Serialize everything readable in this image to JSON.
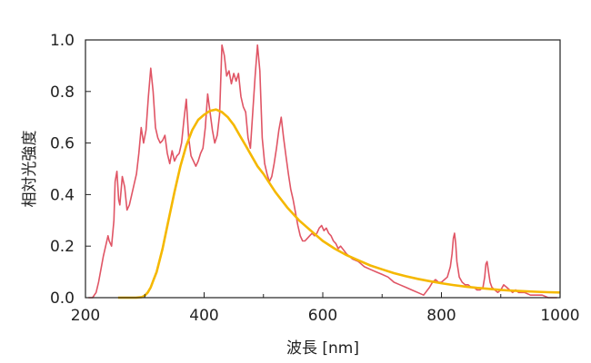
{
  "chart_data": {
    "type": "line",
    "title": "",
    "xlabel": "波長 [nm]",
    "ylabel": "相対光強度",
    "xlim": [
      200,
      1000
    ],
    "ylim": [
      0,
      1.0
    ],
    "xticks": [
      200,
      400,
      600,
      800,
      1000
    ],
    "xtick_labels": [
      "200",
      "400",
      "600",
      "800",
      "1000"
    ],
    "yticks": [
      0,
      0.2,
      0.4,
      0.6,
      0.8,
      1.0
    ],
    "ytick_labels": [
      "0.0",
      "0.2",
      "0.4",
      "0.6",
      "0.8",
      "1.0"
    ],
    "grid": false,
    "legend": "none",
    "series": [
      {
        "color": "#e05565",
        "x": [
          205,
          212,
          218,
          222,
          226,
          230,
          234,
          238,
          240,
          244,
          248,
          250,
          253,
          256,
          258,
          262,
          266,
          270,
          274,
          278,
          282,
          286,
          290,
          294,
          298,
          302,
          306,
          310,
          314,
          318,
          322,
          326,
          330,
          334,
          338,
          342,
          346,
          350,
          354,
          358,
          362,
          366,
          370,
          374,
          378,
          382,
          386,
          390,
          394,
          398,
          402,
          406,
          410,
          414,
          418,
          422,
          426,
          430,
          434,
          438,
          442,
          446,
          450,
          454,
          458,
          462,
          466,
          470,
          474,
          478,
          482,
          486,
          490,
          494,
          498,
          502,
          506,
          510,
          514,
          518,
          522,
          526,
          530,
          534,
          538,
          542,
          546,
          550,
          554,
          558,
          562,
          566,
          570,
          574,
          578,
          582,
          586,
          590,
          594,
          598,
          602,
          606,
          610,
          614,
          618,
          622,
          626,
          630,
          640,
          650,
          660,
          670,
          680,
          690,
          700,
          710,
          720,
          730,
          740,
          750,
          760,
          770,
          780,
          785,
          790,
          795,
          800,
          805,
          810,
          815,
          818,
          820,
          822,
          824,
          826,
          830,
          835,
          840,
          845,
          850,
          855,
          860,
          865,
          870,
          873,
          875,
          877,
          880,
          882,
          885,
          890,
          895,
          900,
          905,
          910,
          915,
          920,
          925,
          930,
          940,
          950,
          960,
          970,
          980,
          990,
          995
        ],
        "values": [
          0.0,
          0.0,
          0.02,
          0.06,
          0.11,
          0.16,
          0.2,
          0.24,
          0.22,
          0.2,
          0.3,
          0.45,
          0.49,
          0.38,
          0.36,
          0.47,
          0.43,
          0.34,
          0.36,
          0.4,
          0.44,
          0.48,
          0.56,
          0.66,
          0.6,
          0.65,
          0.78,
          0.89,
          0.8,
          0.66,
          0.62,
          0.6,
          0.61,
          0.63,
          0.56,
          0.52,
          0.57,
          0.53,
          0.55,
          0.56,
          0.6,
          0.69,
          0.77,
          0.62,
          0.55,
          0.53,
          0.51,
          0.53,
          0.56,
          0.58,
          0.66,
          0.79,
          0.72,
          0.65,
          0.6,
          0.63,
          0.71,
          0.98,
          0.94,
          0.86,
          0.88,
          0.83,
          0.87,
          0.84,
          0.87,
          0.78,
          0.74,
          0.72,
          0.62,
          0.58,
          0.72,
          0.86,
          0.98,
          0.88,
          0.62,
          0.52,
          0.48,
          0.45,
          0.47,
          0.52,
          0.58,
          0.65,
          0.7,
          0.62,
          0.55,
          0.48,
          0.42,
          0.38,
          0.33,
          0.28,
          0.24,
          0.22,
          0.22,
          0.23,
          0.24,
          0.25,
          0.24,
          0.25,
          0.27,
          0.28,
          0.26,
          0.27,
          0.25,
          0.24,
          0.22,
          0.21,
          0.19,
          0.2,
          0.17,
          0.15,
          0.14,
          0.12,
          0.11,
          0.1,
          0.09,
          0.08,
          0.06,
          0.05,
          0.04,
          0.03,
          0.02,
          0.01,
          0.04,
          0.06,
          0.07,
          0.06,
          0.06,
          0.07,
          0.08,
          0.12,
          0.17,
          0.23,
          0.25,
          0.21,
          0.14,
          0.08,
          0.06,
          0.05,
          0.05,
          0.04,
          0.04,
          0.03,
          0.03,
          0.04,
          0.08,
          0.13,
          0.14,
          0.09,
          0.06,
          0.04,
          0.03,
          0.02,
          0.03,
          0.05,
          0.04,
          0.03,
          0.02,
          0.03,
          0.02,
          0.02,
          0.01,
          0.01,
          0.01,
          0.0,
          0.0,
          0.0
        ]
      },
      {
        "color": "#f5b800",
        "x": [
          255,
          270,
          285,
          295,
          300,
          305,
          310,
          315,
          320,
          330,
          340,
          350,
          360,
          370,
          380,
          390,
          400,
          410,
          420,
          430,
          440,
          450,
          460,
          470,
          480,
          490,
          500,
          520,
          540,
          560,
          580,
          600,
          620,
          640,
          660,
          680,
          700,
          720,
          740,
          760,
          780,
          800,
          820,
          840,
          860,
          880,
          900,
          920,
          940,
          960,
          980,
          1000
        ],
        "values": [
          0.0,
          0.0,
          0.0,
          0.002,
          0.008,
          0.02,
          0.04,
          0.07,
          0.1,
          0.19,
          0.3,
          0.41,
          0.51,
          0.59,
          0.65,
          0.69,
          0.71,
          0.725,
          0.73,
          0.72,
          0.7,
          0.67,
          0.63,
          0.59,
          0.55,
          0.51,
          0.48,
          0.41,
          0.35,
          0.3,
          0.26,
          0.22,
          0.19,
          0.165,
          0.145,
          0.125,
          0.11,
          0.095,
          0.083,
          0.073,
          0.064,
          0.056,
          0.049,
          0.043,
          0.038,
          0.034,
          0.03,
          0.027,
          0.025,
          0.023,
          0.021,
          0.02
        ]
      }
    ]
  }
}
